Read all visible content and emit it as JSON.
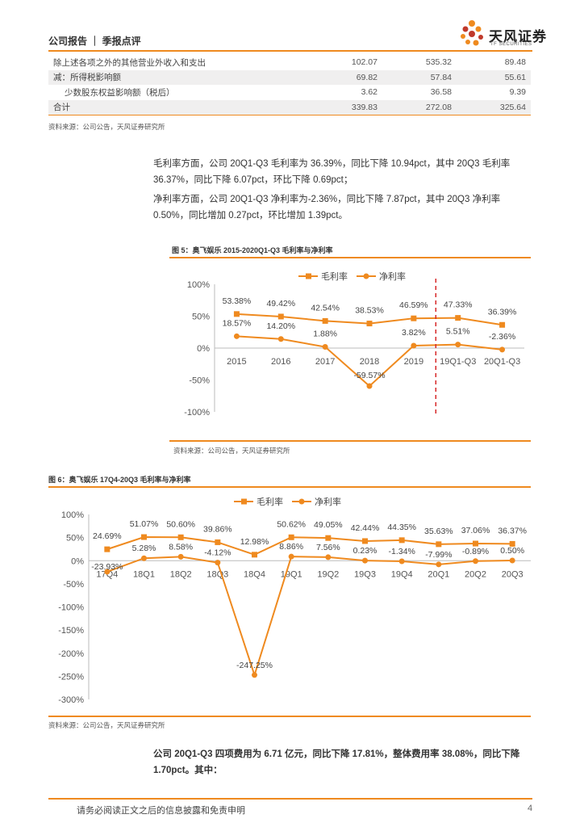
{
  "header": {
    "title": "公司报告 ｜ 季报点评",
    "logo_cn": "天风证券",
    "logo_en": "TF SECURITIES"
  },
  "colors": {
    "accent": "#ef8a1f"
  },
  "table": {
    "rows": [
      {
        "label": "除上述各项之外的其他营业外收入和支出",
        "v1": "102.07",
        "v2": "535.32",
        "v3": "89.48"
      },
      {
        "label": "减：所得税影响额",
        "v1": "69.82",
        "v2": "57.84",
        "v3": "55.61"
      },
      {
        "label": "少数股东权益影响额（税后）",
        "v1": "3.62",
        "v2": "36.58",
        "v3": "9.39"
      },
      {
        "label": "合计",
        "v1": "339.83",
        "v2": "272.08",
        "v3": "325.64"
      }
    ],
    "source": "资料来源：公司公告，天风证券研究所"
  },
  "paragraphs": [
    "毛利率方面，公司 20Q1-Q3 毛利率为 36.39%，同比下降 10.94pct，其中 20Q3 毛利率 36.37%，同比下降 6.07pct，环比下降 0.69pct；",
    "净利率方面，公司 20Q1-Q3 净利率为-2.36%，同比下降 7.87pct，其中 20Q3 净利率 0.50%，同比增加 0.27pct，环比增加 1.39pct。"
  ],
  "fig5": {
    "title": "图 5：奥飞娱乐 2015-2020Q1-Q3 毛利率与净利率",
    "source": "资料来源：公司公告，天风证券研究所"
  },
  "fig6": {
    "title": "图 6：奥飞娱乐 17Q4-20Q3 毛利率与净利率",
    "source": "资料来源：公司公告，天风证券研究所"
  },
  "chart_data": [
    {
      "type": "line",
      "title": "图 5：奥飞娱乐 2015-2020Q1-Q3 毛利率与净利率",
      "categories": [
        "2015",
        "2016",
        "2017",
        "2018",
        "2019",
        "19Q1-Q3",
        "20Q1-Q3"
      ],
      "series": [
        {
          "name": "毛利率",
          "values": [
            53.38,
            49.42,
            42.54,
            38.53,
            46.59,
            47.33,
            36.39
          ],
          "labels": [
            "53.38%",
            "49.42%",
            "42.54%",
            "38.53%",
            "46.59%",
            "47.33%",
            "36.39%"
          ]
        },
        {
          "name": "净利率",
          "values": [
            18.57,
            14.2,
            1.88,
            -59.57,
            3.82,
            5.51,
            -2.36
          ],
          "labels": [
            "18.57%",
            "14.20%",
            "1.88%",
            "-59.57%",
            "3.82%",
            "5.51%",
            "-2.36%"
          ]
        }
      ],
      "y_ticks": [
        "100%",
        "50%",
        "0%",
        "-50%",
        "-100%"
      ],
      "ylim": [
        -100,
        100
      ],
      "legend": "top-center",
      "annotation": "red dashed divider between 2019 and 19Q1-Q3"
    },
    {
      "type": "line",
      "title": "图 6：奥飞娱乐 17Q4-20Q3 毛利率与净利率",
      "categories": [
        "17Q4",
        "18Q1",
        "18Q2",
        "18Q3",
        "18Q4",
        "19Q1",
        "19Q2",
        "19Q3",
        "19Q4",
        "20Q1",
        "20Q2",
        "20Q3"
      ],
      "series": [
        {
          "name": "毛利率",
          "values": [
            24.69,
            51.07,
            50.6,
            39.86,
            12.98,
            50.62,
            49.05,
            42.44,
            44.35,
            35.63,
            37.06,
            36.37
          ],
          "labels": [
            "24.69%",
            "51.07%",
            "50.60%",
            "39.86%",
            "12.98%",
            "50.62%",
            "49.05%",
            "42.44%",
            "44.35%",
            "35.63%",
            "37.06%",
            "36.37%"
          ]
        },
        {
          "name": "净利率",
          "values": [
            -23.93,
            5.28,
            8.58,
            -4.12,
            -247.25,
            8.86,
            7.56,
            0.23,
            -1.34,
            -7.99,
            -0.89,
            0.5
          ],
          "labels": [
            "-23.93%",
            "5.28%",
            "8.58%",
            "-4.12%",
            "-247.25%",
            "8.86%",
            "7.56%",
            "0.23%",
            "-1.34%",
            "-7.99%",
            "-0.89%",
            "0.50%"
          ]
        }
      ],
      "y_ticks": [
        "100%",
        "50%",
        "0%",
        "-50%",
        "-100%",
        "-150%",
        "-200%",
        "-250%",
        "-300%"
      ],
      "ylim": [
        -300,
        100
      ],
      "legend": "top-center"
    }
  ],
  "closing": "公司 20Q1-Q3 四项费用为 6.71 亿元，同比下降 17.81%，整体费用率 38.08%，同比下降 1.70pct。其中：",
  "footer": {
    "disclaimer": "请务必阅读正文之后的信息披露和免责申明",
    "page": "4"
  }
}
